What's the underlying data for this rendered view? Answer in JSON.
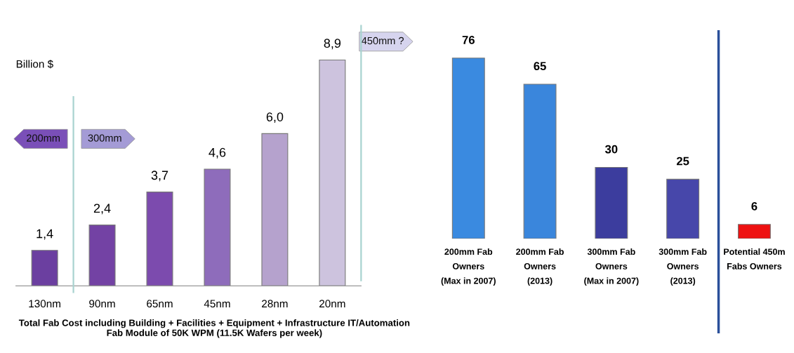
{
  "chart_data": [
    {
      "type": "bar",
      "ylabel": "Billion $",
      "xlabel": "Total Fab Cost including Building + Facilities + Equipment + Infrastructure IT/Automation\nFab Module of 50K WPM (11.5K Wafers per week)",
      "categories": [
        "130nm",
        "90nm",
        "65nm",
        "45nm",
        "28nm",
        "20nm"
      ],
      "values": [
        1.4,
        2.4,
        3.7,
        4.6,
        6.0,
        8.9
      ],
      "value_labels": [
        "1,4",
        "2,4",
        "3,7",
        "4,6",
        "6,0",
        "8,9"
      ],
      "colors": [
        "#6b3fa0",
        "#7342a4",
        "#7c4bae",
        "#8e6cbb",
        "#b5a2cd",
        "#cdc3de"
      ],
      "annotations": [
        "200mm",
        "300mm",
        "450mm ?"
      ],
      "tick_labels": "x",
      "grid": false,
      "legend": false
    },
    {
      "type": "bar",
      "categories": [
        "200mm Fab\nOwners\n(Max in 2007)",
        "200mm Fab\nOwners\n(2013)",
        "300mm Fab\nOwners\n(Max in 2007)",
        "300mm Fab\nOwners\n(2013)",
        "Potential 450m\nFabs Owners"
      ],
      "values": [
        76,
        65,
        30,
        25,
        6
      ],
      "colors": [
        "#3a8ae0",
        "#3a86dc",
        "#3c3d9e",
        "#4747aa",
        "#ee1111"
      ],
      "data_labels": true,
      "tick_labels": "x",
      "grid": false,
      "legend": false
    }
  ]
}
